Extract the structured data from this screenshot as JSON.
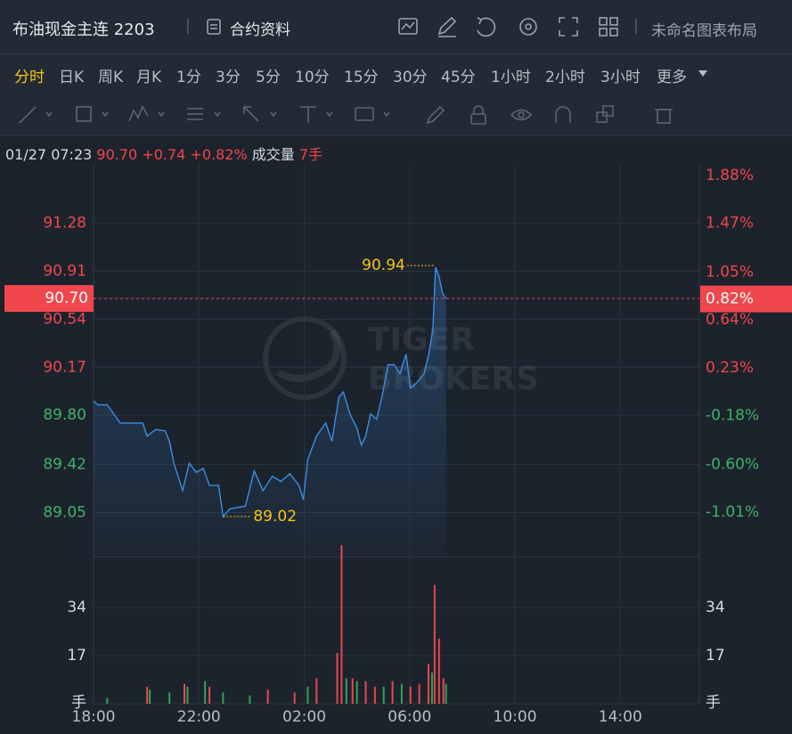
{
  "toolbar": {
    "title": "布油现金主连 2203",
    "contract_info": "合约资料",
    "layout_name": "未命名图表布局"
  },
  "timeframes": {
    "items": [
      "分时",
      "日K",
      "周K",
      "月K",
      "1分",
      "3分",
      "5分",
      "10分",
      "15分",
      "30分",
      "45分",
      "1小时",
      "2小时",
      "3小时"
    ],
    "active": 0,
    "more": "更多"
  },
  "quote": {
    "time": "01/27 07:23",
    "price": "90.70",
    "change": "+0.74",
    "change_pct": "+0.82%",
    "volume_label": "成交量",
    "volume": "7手"
  },
  "chart_data": {
    "type": "line",
    "series": [
      {
        "color": "#3a8ee6",
        "x": [
          "18:00",
          "18:10",
          "18:31",
          "19:01",
          "19:52",
          "20:02",
          "20:22",
          "20:43",
          "20:53",
          "21:03",
          "21:23",
          "21:38",
          "21:54",
          "22:10",
          "22:24",
          "22:45",
          "22:55",
          "23:11",
          "23:46",
          "00:06",
          "00:26",
          "00:47",
          "01:07",
          "01:27",
          "01:48",
          "01:58",
          "02:08",
          "02:28",
          "02:49",
          "03:03",
          "03:19",
          "03:29",
          "03:44",
          "04:00",
          "04:10",
          "04:20",
          "04:31",
          "04:45",
          "04:57",
          "05:11",
          "05:25",
          "05:38",
          "05:52",
          "06:02",
          "06:16",
          "06:33",
          "06:43",
          "06:53",
          "06:59",
          "07:07",
          "07:15",
          "07:23"
        ],
        "values": [
          89.91,
          89.88,
          89.88,
          89.74,
          89.74,
          89.64,
          89.69,
          89.68,
          89.6,
          89.43,
          89.22,
          89.43,
          89.36,
          89.39,
          89.26,
          89.26,
          89.02,
          89.08,
          89.1,
          89.37,
          89.22,
          89.33,
          89.29,
          89.35,
          89.26,
          89.15,
          89.46,
          89.64,
          89.74,
          89.6,
          89.94,
          89.98,
          89.81,
          89.7,
          89.57,
          89.64,
          89.81,
          89.77,
          89.94,
          90.19,
          90.19,
          90.12,
          90.27,
          90.01,
          90.05,
          90.12,
          90.26,
          90.46,
          90.94,
          90.87,
          90.74,
          90.7
        ]
      }
    ],
    "xlim": [
      "18:00",
      "17:00"
    ],
    "xticks": [
      "18:00",
      "22:00",
      "02:00",
      "06:00",
      "10:00",
      "14:00"
    ],
    "ylim": [
      88.71,
      91.73
    ],
    "yticks": [
      91.28,
      90.91,
      90.54,
      90.17,
      {
        "value": 89.8,
        "label": "89.80"
      },
      89.42,
      89.05
    ],
    "y2lim": [
      -1.39,
      1.97
    ],
    "y2ticks": [
      {
        "value": 1.88,
        "label": "1.88%"
      },
      {
        "value": 1.47,
        "label": "1.47%"
      },
      {
        "value": 1.05,
        "label": "1.05%"
      },
      {
        "value": 0.64,
        "label": "0.64%"
      },
      {
        "value": 0.23,
        "label": "0.23%"
      },
      {
        "value": -0.18,
        "label": "-0.18%"
      },
      {
        "value": -0.6,
        "label": "-0.60%"
      },
      {
        "value": -1.01,
        "label": "-1.01%"
      }
    ],
    "grid": true,
    "up_color": "#f0474d",
    "down_color": "#3fb26a",
    "high": {
      "x": "06:59",
      "value": 90.94
    },
    "low": {
      "x": "22:55",
      "value": 89.02
    },
    "last_price": {
      "value": 90.7,
      "label": "90.70"
    },
    "last_change_pct": {
      "value": 0.82,
      "label": "0.82%"
    },
    "watermark": [
      "TIGER",
      "BROKERS"
    ],
    "volume": {
      "ylim": [
        0,
        57
      ],
      "yticks": [
        17,
        34
      ],
      "unit_label": "手",
      "series": [
        {
          "color": "#e5484d",
          "x": [
            "03:25",
            "03:15",
            "06:57",
            "07:07",
            "20:02",
            "21:27",
            "02:28",
            "03:50",
            "04:20",
            "05:21",
            "06:22",
            "06:43",
            "07:17",
            "00:37",
            "22:24",
            "01:38",
            "04:41",
            "06:02"
          ],
          "values": [
            56,
            18,
            42,
            23,
            6,
            7,
            9,
            9,
            8,
            8,
            7,
            14,
            9,
            5,
            6,
            4,
            6,
            6
          ]
        },
        {
          "color": "#31a35b",
          "x": [
            "20:08",
            "21:34",
            "22:14",
            "03:36",
            "04:00",
            "06:51",
            "07:23",
            "22:55",
            "23:56",
            "02:08",
            "05:01",
            "05:42",
            "18:31",
            "20:53"
          ],
          "values": [
            5,
            6,
            8,
            9,
            8,
            11,
            7,
            4,
            3,
            6,
            6,
            7,
            2,
            4
          ]
        }
      ]
    }
  }
}
